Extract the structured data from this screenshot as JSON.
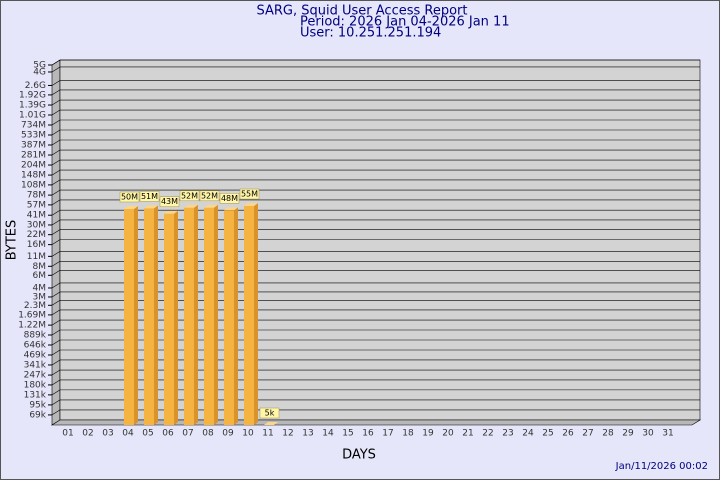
{
  "chart_data": {
    "type": "bar",
    "log_scale": true,
    "grid": true,
    "color": "#f5b341",
    "title": "SARG, Squid User Access Report",
    "period": "Period: 2026 Jan 04-2026 Jan 11",
    "user": "User: 10.251.251.194",
    "y_label": "BYTES",
    "x_label": "DAYS",
    "timestamp": "Jan/11/2026 00:02",
    "categories": [
      "01",
      "02",
      "03",
      "04",
      "05",
      "06",
      "07",
      "08",
      "09",
      "10",
      "11",
      "12",
      "13",
      "14",
      "15",
      "16",
      "17",
      "18",
      "19",
      "20",
      "21",
      "22",
      "23",
      "24",
      "25",
      "26",
      "27",
      "28",
      "29",
      "30",
      "31"
    ],
    "values": [
      null,
      null,
      null,
      50000000,
      51000000,
      43000000,
      52000000,
      52000000,
      48000000,
      55000000,
      5000,
      null,
      null,
      null,
      null,
      null,
      null,
      null,
      null,
      null,
      null,
      null,
      null,
      null,
      null,
      null,
      null,
      null,
      null,
      null,
      null
    ],
    "value_labels": [
      null,
      null,
      null,
      "50M",
      "51M",
      "43M",
      "52M",
      "52M",
      "48M",
      "55M",
      "5k",
      null,
      null,
      null,
      null,
      null,
      null,
      null,
      null,
      null,
      null,
      null,
      null,
      null,
      null,
      null,
      null,
      null,
      null,
      null,
      null
    ],
    "ylim": [
      50000,
      5000000000
    ],
    "yticks": [
      {
        "value": 69000,
        "label": "69k"
      },
      {
        "value": 95000,
        "label": "95k"
      },
      {
        "value": 131000,
        "label": "131k"
      },
      {
        "value": 180000,
        "label": "180k"
      },
      {
        "value": 247000,
        "label": "247k"
      },
      {
        "value": 341000,
        "label": "341k"
      },
      {
        "value": 469000,
        "label": "469k"
      },
      {
        "value": 646000,
        "label": "646k"
      },
      {
        "value": 889000,
        "label": "889k"
      },
      {
        "value": 1220000,
        "label": "1.22M"
      },
      {
        "value": 1690000,
        "label": "1.69M"
      },
      {
        "value": 2300000,
        "label": "2.3M"
      },
      {
        "value": 3000000,
        "label": "3M"
      },
      {
        "value": 4000000,
        "label": "4M"
      },
      {
        "value": 6000000,
        "label": "6M"
      },
      {
        "value": 8000000,
        "label": "8M"
      },
      {
        "value": 11000000,
        "label": "11M"
      },
      {
        "value": 16000000,
        "label": "16M"
      },
      {
        "value": 22000000,
        "label": "22M"
      },
      {
        "value": 30000000,
        "label": "30M"
      },
      {
        "value": 41000000,
        "label": "41M"
      },
      {
        "value": 57000000,
        "label": "57M"
      },
      {
        "value": 78000000,
        "label": "78M"
      },
      {
        "value": 108000000,
        "label": "108M"
      },
      {
        "value": 148000000,
        "label": "148M"
      },
      {
        "value": 204000000,
        "label": "204M"
      },
      {
        "value": 281000000,
        "label": "281M"
      },
      {
        "value": 387000000,
        "label": "387M"
      },
      {
        "value": 533000000,
        "label": "533M"
      },
      {
        "value": 734000000,
        "label": "734M"
      },
      {
        "value": 1010000000,
        "label": "1.01G"
      },
      {
        "value": 1390000000,
        "label": "1.39G"
      },
      {
        "value": 1920000000,
        "label": "1.92G"
      },
      {
        "value": 2600000000,
        "label": "2.6G"
      },
      {
        "value": 4000000000,
        "label": "4G"
      },
      {
        "value": 5000000000,
        "label": "5G"
      }
    ]
  }
}
